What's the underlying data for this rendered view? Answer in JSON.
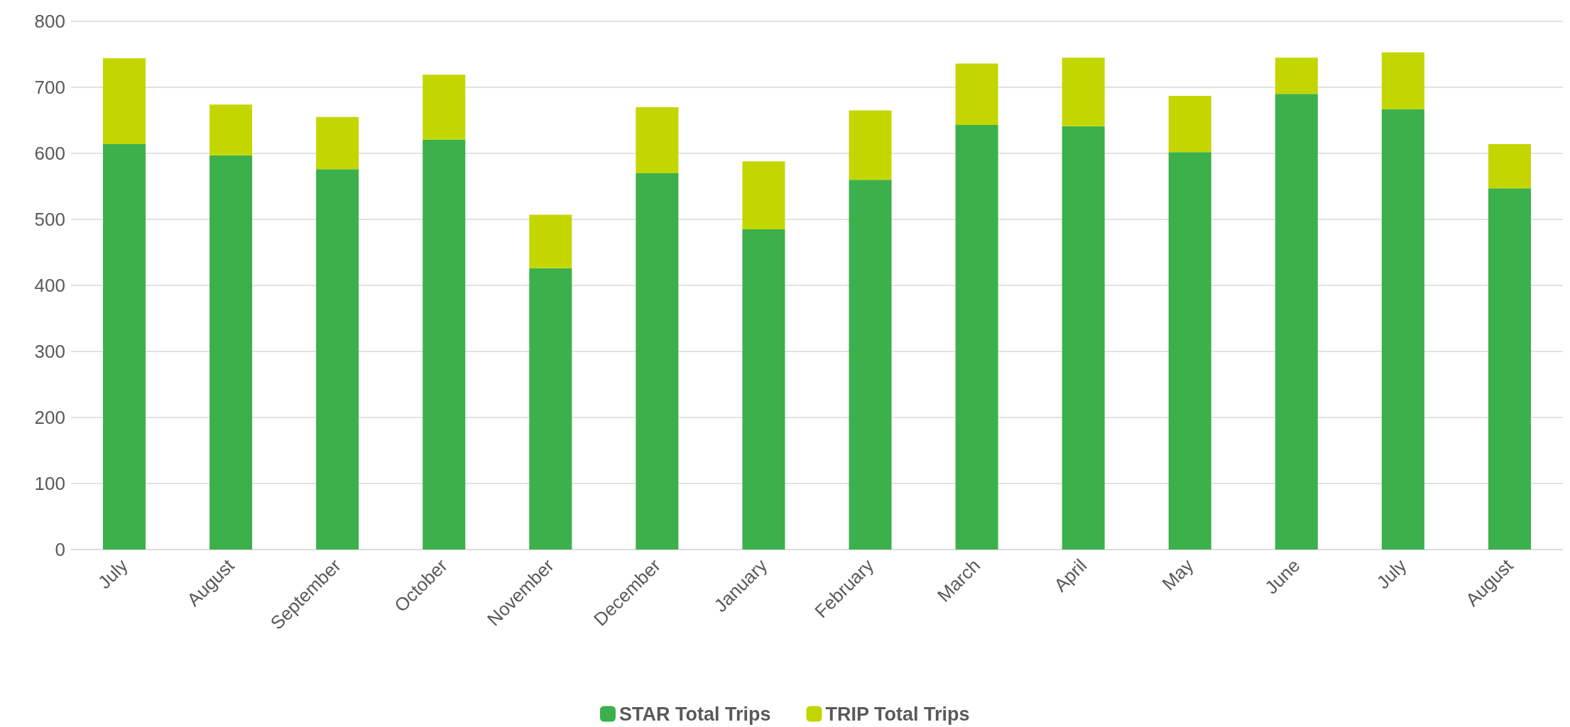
{
  "chart_data": {
    "type": "bar",
    "stacked": true,
    "categories": [
      "July",
      "August",
      "September",
      "October",
      "November",
      "December",
      "January",
      "February",
      "March",
      "April",
      "May",
      "June",
      "July",
      "August"
    ],
    "series": [
      {
        "name": "STAR Total Trips",
        "color": "#3cb04a",
        "values": [
          614,
          597,
          576,
          621,
          426,
          570,
          485,
          560,
          643,
          641,
          602,
          690,
          667,
          547
        ]
      },
      {
        "name": "TRIP Total Trips",
        "color": "#c4d600",
        "values": [
          130,
          77,
          79,
          98,
          81,
          100,
          103,
          105,
          93,
          104,
          85,
          55,
          86,
          67
        ]
      }
    ],
    "ylim": [
      0,
      800
    ],
    "yticks": [
      0,
      100,
      200,
      300,
      400,
      500,
      600,
      700,
      800
    ],
    "grid": "y",
    "legend": "bottom"
  }
}
